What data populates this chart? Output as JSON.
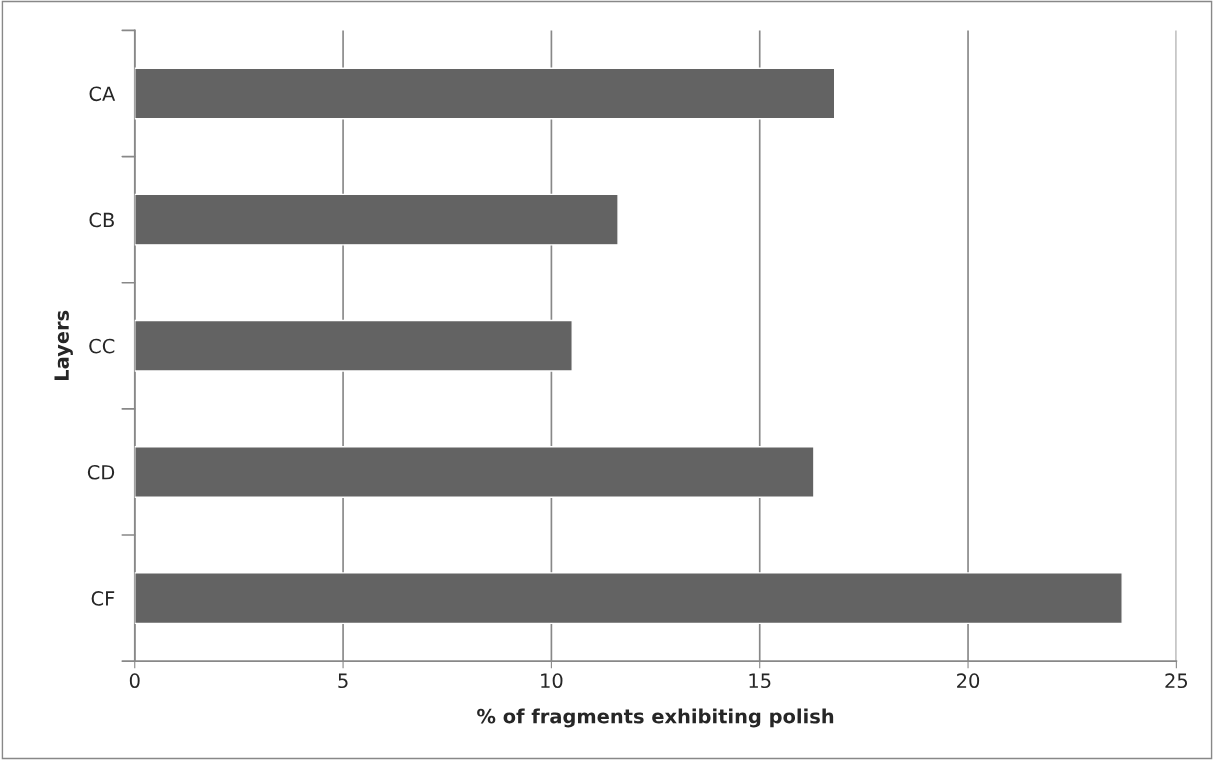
{
  "chart_data": {
    "type": "bar",
    "orientation": "horizontal",
    "xlabel": "% of fragments exhibiting polish",
    "ylabel": "Layers",
    "categories": [
      "CA",
      "CB",
      "CC",
      "CD",
      "CF"
    ],
    "values": [
      16.8,
      11.6,
      10.5,
      16.3,
      23.7
    ],
    "color": "#636363",
    "xlim": [
      0,
      25
    ],
    "xticks": [
      0,
      5,
      10,
      15,
      20,
      25
    ],
    "grid": "x",
    "legend": false
  }
}
